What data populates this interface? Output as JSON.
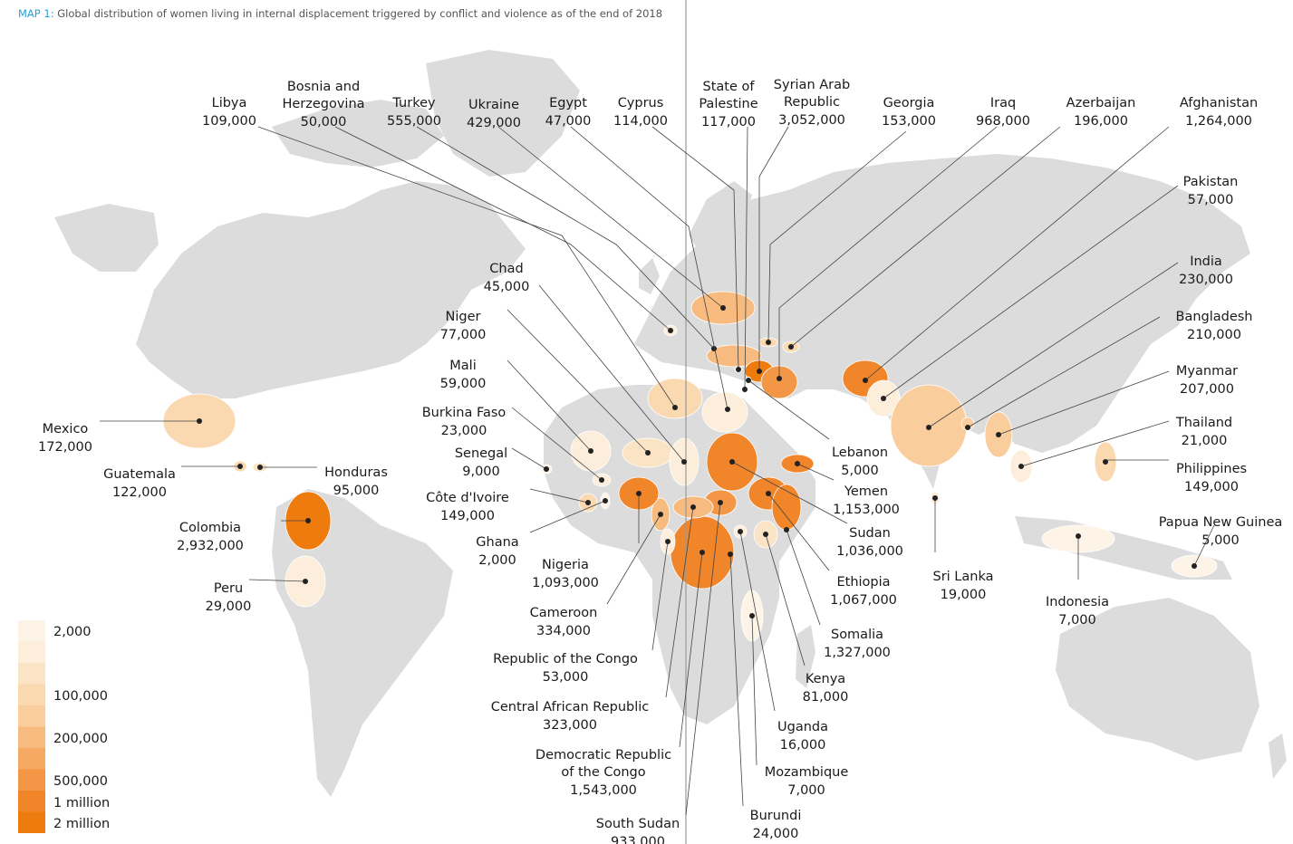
{
  "title": {
    "map_number": "MAP 1:",
    "text": "Global distribution of women living in internal displacement triggered by conflict and violence as of the end of 2018"
  },
  "colors": {
    "land": "#dcdcdc",
    "ocean": "#ffffff",
    "leader": "#444444",
    "divider": "#999999",
    "scale": [
      "#fdf3e6",
      "#fceedb",
      "#fbe4c6",
      "#fad8b0",
      "#f9cd9c",
      "#f7bb80",
      "#f5a962",
      "#f39746",
      "#f0852a",
      "#ee7b0e"
    ]
  },
  "legend": {
    "ticks": [
      "2,000",
      "100,000",
      "200,000",
      "500,000",
      "1 million",
      "2 million"
    ]
  },
  "countries": [
    {
      "id": "libya",
      "name": "Libya",
      "value": "109,000",
      "shade": 3
    },
    {
      "id": "bosnia",
      "name": "Bosnia and Herzegovina",
      "name_lines": [
        "Bosnia and",
        "Herzegovina"
      ],
      "value": "50,000",
      "shade": 1
    },
    {
      "id": "turkey",
      "name": "Turkey",
      "value": "555,000",
      "shade": 5
    },
    {
      "id": "ukraine",
      "name": "Ukraine",
      "value": "429,000",
      "shade": 5
    },
    {
      "id": "egypt",
      "name": "Egypt",
      "value": "47,000",
      "shade": 1
    },
    {
      "id": "cyprus",
      "name": "Cyprus",
      "value": "114,000",
      "shade": 3
    },
    {
      "id": "palestine",
      "name": "State of Palestine",
      "name_lines": [
        "State of",
        "Palestine"
      ],
      "value": "117,000",
      "shade": 3
    },
    {
      "id": "syria",
      "name": "Syrian Arab Republic",
      "name_lines": [
        "Syrian Arab",
        "Republic"
      ],
      "value": "3,052,000",
      "shade": 9
    },
    {
      "id": "georgia",
      "name": "Georgia",
      "value": "153,000",
      "shade": 3
    },
    {
      "id": "iraq",
      "name": "Iraq",
      "value": "968,000",
      "shade": 7
    },
    {
      "id": "azerbaijan",
      "name": "Azerbaijan",
      "value": "196,000",
      "shade": 3
    },
    {
      "id": "afghanistan",
      "name": "Afghanistan",
      "value": "1,264,000",
      "shade": 8
    },
    {
      "id": "pakistan",
      "name": "Pakistan",
      "value": "57,000",
      "shade": 1
    },
    {
      "id": "india",
      "name": "India",
      "value": "230,000",
      "shade": 4
    },
    {
      "id": "bangladesh",
      "name": "Bangladesh",
      "value": "210,000",
      "shade": 4
    },
    {
      "id": "myanmar",
      "name": "Myanmar",
      "value": "207,000",
      "shade": 4
    },
    {
      "id": "thailand",
      "name": "Thailand",
      "value": "21,000",
      "shade": 1
    },
    {
      "id": "philippines",
      "name": "Philippines",
      "value": "149,000",
      "shade": 3
    },
    {
      "id": "papua",
      "name": "Papua New Guinea",
      "value": "5,000",
      "shade": 0
    },
    {
      "id": "indonesia",
      "name": "Indonesia",
      "value": "7,000",
      "shade": 0
    },
    {
      "id": "srilanka",
      "name": "Sri Lanka",
      "value": "19,000",
      "shade": 1
    },
    {
      "id": "lebanon",
      "name": "Lebanon",
      "value": "5,000",
      "shade": 0
    },
    {
      "id": "yemen",
      "name": "Yemen",
      "value": "1,153,000",
      "shade": 8
    },
    {
      "id": "sudan",
      "name": "Sudan",
      "value": "1,036,000",
      "shade": 8
    },
    {
      "id": "ethiopia",
      "name": "Ethiopia",
      "value": "1,067,000",
      "shade": 8
    },
    {
      "id": "somalia",
      "name": "Somalia",
      "value": "1,327,000",
      "shade": 8
    },
    {
      "id": "kenya",
      "name": "Kenya",
      "value": "81,000",
      "shade": 2
    },
    {
      "id": "uganda",
      "name": "Uganda",
      "value": "16,000",
      "shade": 1
    },
    {
      "id": "mozambique",
      "name": "Mozambique",
      "value": "7,000",
      "shade": 0
    },
    {
      "id": "burundi",
      "name": "Burundi",
      "value": "24,000",
      "shade": 1
    },
    {
      "id": "southsudan",
      "name": "South Sudan",
      "value": "933,000",
      "shade": 7
    },
    {
      "id": "drc",
      "name": "Democratic Republic of the Congo",
      "name_lines": [
        "Democratic Republic",
        "of the Congo"
      ],
      "value": "1,543,000",
      "shade": 8
    },
    {
      "id": "car",
      "name": "Central African Republic",
      "value": "323,000",
      "shade": 5
    },
    {
      "id": "congo",
      "name": "Republic of the Congo",
      "value": "53,000",
      "shade": 1
    },
    {
      "id": "cameroon",
      "name": "Cameroon",
      "value": "334,000",
      "shade": 5
    },
    {
      "id": "nigeria",
      "name": "Nigeria",
      "value": "1,093,000",
      "shade": 8
    },
    {
      "id": "ghana",
      "name": "Ghana",
      "value": "2,000",
      "shade": 0
    },
    {
      "id": "cotedivoire",
      "name": "Côte d'Ivoire",
      "value": "149,000",
      "shade": 3
    },
    {
      "id": "senegal",
      "name": "Senegal",
      "value": "9,000",
      "shade": 0
    },
    {
      "id": "burkinafaso",
      "name": "Burkina Faso",
      "value": "23,000",
      "shade": 1
    },
    {
      "id": "mali",
      "name": "Mali",
      "value": "59,000",
      "shade": 1
    },
    {
      "id": "niger",
      "name": "Niger",
      "value": "77,000",
      "shade": 2
    },
    {
      "id": "chad",
      "name": "Chad",
      "value": "45,000",
      "shade": 1
    },
    {
      "id": "mexico",
      "name": "Mexico",
      "value": "172,000",
      "shade": 3
    },
    {
      "id": "guatemala",
      "name": "Guatemala",
      "value": "122,000",
      "shade": 3
    },
    {
      "id": "honduras",
      "name": "Honduras",
      "value": "95,000",
      "shade": 2
    },
    {
      "id": "colombia",
      "name": "Colombia",
      "value": "2,932,000",
      "shade": 9
    },
    {
      "id": "peru",
      "name": "Peru",
      "value": "29,000",
      "shade": 1
    }
  ]
}
